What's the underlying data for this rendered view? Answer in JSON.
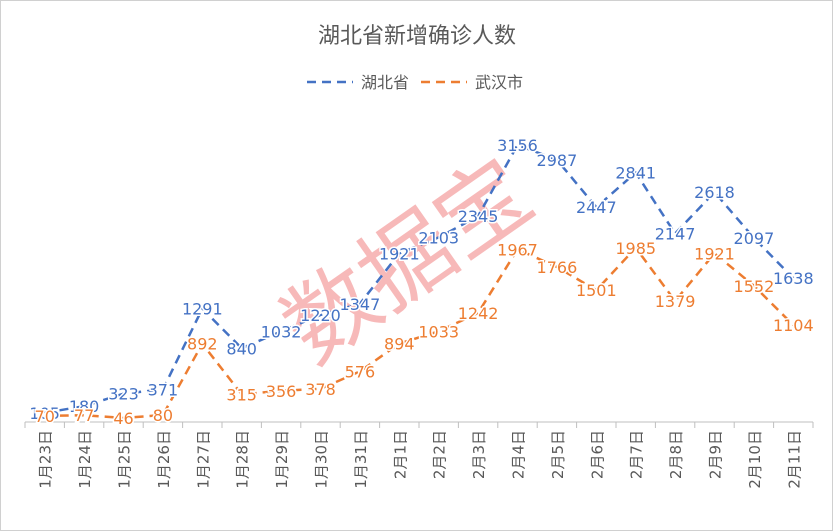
{
  "chart_data": {
    "type": "line",
    "title": "湖北省新增确诊人数",
    "xlabel": "",
    "ylabel": "",
    "categories": [
      "1月23日",
      "1月24日",
      "1月25日",
      "1月26日",
      "1月27日",
      "1月28日",
      "1月29日",
      "1月30日",
      "1月31日",
      "2月1日",
      "2月2日",
      "2月3日",
      "2月4日",
      "2月5日",
      "2月6日",
      "2月7日",
      "2月8日",
      "2月9日",
      "2月10日",
      "2月11日"
    ],
    "series": [
      {
        "name": "湖北省",
        "color": "#4472C4",
        "values": [
          105,
          180,
          323,
          371,
          1291,
          840,
          1032,
          1220,
          1347,
          1921,
          2103,
          2345,
          3156,
          2987,
          2447,
          2841,
          2147,
          2618,
          2097,
          1638
        ]
      },
      {
        "name": "武汉市",
        "color": "#ED7D31",
        "values": [
          70,
          77,
          46,
          80,
          892,
          315,
          356,
          378,
          576,
          894,
          1033,
          1242,
          1967,
          1766,
          1501,
          1985,
          1379,
          1921,
          1552,
          1104
        ]
      }
    ],
    "ylim": [
      0,
      3600
    ],
    "legend_position": "top",
    "grid": false,
    "line_style": "dashed",
    "watermark": "数据宝"
  }
}
